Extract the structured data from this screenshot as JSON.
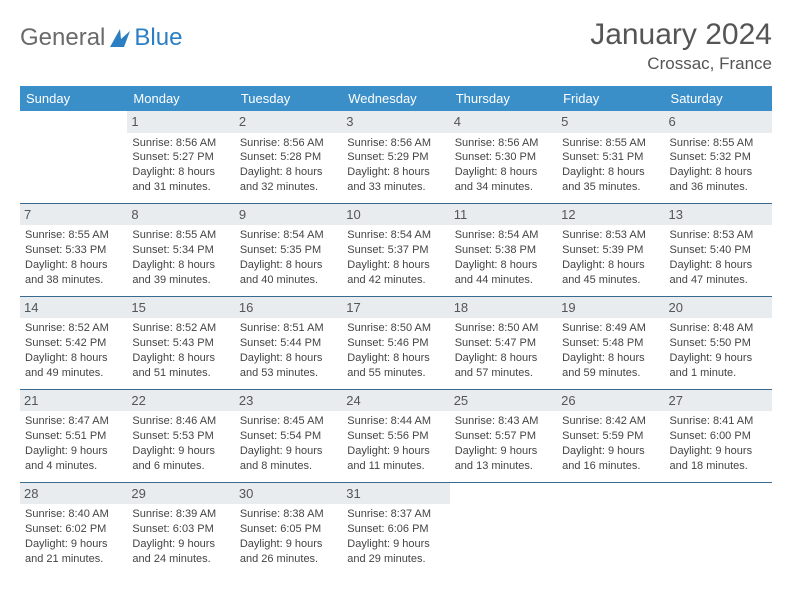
{
  "brand": {
    "part1": "General",
    "part2": "Blue"
  },
  "title": "January 2024",
  "location": "Crossac, France",
  "weekdays": [
    "Sunday",
    "Monday",
    "Tuesday",
    "Wednesday",
    "Thursday",
    "Friday",
    "Saturday"
  ],
  "colors": {
    "header_bg": "#3b8fc9",
    "header_text": "#ffffff",
    "daynum_bg": "#e8ecef",
    "border": "#3b6a8f",
    "brand_gray": "#6a6a6a",
    "brand_blue": "#2a7fc4"
  },
  "weeks": [
    [
      null,
      {
        "num": "1",
        "sunrise": "8:56 AM",
        "sunset": "5:27 PM",
        "daylight": "8 hours and 31 minutes."
      },
      {
        "num": "2",
        "sunrise": "8:56 AM",
        "sunset": "5:28 PM",
        "daylight": "8 hours and 32 minutes."
      },
      {
        "num": "3",
        "sunrise": "8:56 AM",
        "sunset": "5:29 PM",
        "daylight": "8 hours and 33 minutes."
      },
      {
        "num": "4",
        "sunrise": "8:56 AM",
        "sunset": "5:30 PM",
        "daylight": "8 hours and 34 minutes."
      },
      {
        "num": "5",
        "sunrise": "8:55 AM",
        "sunset": "5:31 PM",
        "daylight": "8 hours and 35 minutes."
      },
      {
        "num": "6",
        "sunrise": "8:55 AM",
        "sunset": "5:32 PM",
        "daylight": "8 hours and 36 minutes."
      }
    ],
    [
      {
        "num": "7",
        "sunrise": "8:55 AM",
        "sunset": "5:33 PM",
        "daylight": "8 hours and 38 minutes."
      },
      {
        "num": "8",
        "sunrise": "8:55 AM",
        "sunset": "5:34 PM",
        "daylight": "8 hours and 39 minutes."
      },
      {
        "num": "9",
        "sunrise": "8:54 AM",
        "sunset": "5:35 PM",
        "daylight": "8 hours and 40 minutes."
      },
      {
        "num": "10",
        "sunrise": "8:54 AM",
        "sunset": "5:37 PM",
        "daylight": "8 hours and 42 minutes."
      },
      {
        "num": "11",
        "sunrise": "8:54 AM",
        "sunset": "5:38 PM",
        "daylight": "8 hours and 44 minutes."
      },
      {
        "num": "12",
        "sunrise": "8:53 AM",
        "sunset": "5:39 PM",
        "daylight": "8 hours and 45 minutes."
      },
      {
        "num": "13",
        "sunrise": "8:53 AM",
        "sunset": "5:40 PM",
        "daylight": "8 hours and 47 minutes."
      }
    ],
    [
      {
        "num": "14",
        "sunrise": "8:52 AM",
        "sunset": "5:42 PM",
        "daylight": "8 hours and 49 minutes."
      },
      {
        "num": "15",
        "sunrise": "8:52 AM",
        "sunset": "5:43 PM",
        "daylight": "8 hours and 51 minutes."
      },
      {
        "num": "16",
        "sunrise": "8:51 AM",
        "sunset": "5:44 PM",
        "daylight": "8 hours and 53 minutes."
      },
      {
        "num": "17",
        "sunrise": "8:50 AM",
        "sunset": "5:46 PM",
        "daylight": "8 hours and 55 minutes."
      },
      {
        "num": "18",
        "sunrise": "8:50 AM",
        "sunset": "5:47 PM",
        "daylight": "8 hours and 57 minutes."
      },
      {
        "num": "19",
        "sunrise": "8:49 AM",
        "sunset": "5:48 PM",
        "daylight": "8 hours and 59 minutes."
      },
      {
        "num": "20",
        "sunrise": "8:48 AM",
        "sunset": "5:50 PM",
        "daylight": "9 hours and 1 minute."
      }
    ],
    [
      {
        "num": "21",
        "sunrise": "8:47 AM",
        "sunset": "5:51 PM",
        "daylight": "9 hours and 4 minutes."
      },
      {
        "num": "22",
        "sunrise": "8:46 AM",
        "sunset": "5:53 PM",
        "daylight": "9 hours and 6 minutes."
      },
      {
        "num": "23",
        "sunrise": "8:45 AM",
        "sunset": "5:54 PM",
        "daylight": "9 hours and 8 minutes."
      },
      {
        "num": "24",
        "sunrise": "8:44 AM",
        "sunset": "5:56 PM",
        "daylight": "9 hours and 11 minutes."
      },
      {
        "num": "25",
        "sunrise": "8:43 AM",
        "sunset": "5:57 PM",
        "daylight": "9 hours and 13 minutes."
      },
      {
        "num": "26",
        "sunrise": "8:42 AM",
        "sunset": "5:59 PM",
        "daylight": "9 hours and 16 minutes."
      },
      {
        "num": "27",
        "sunrise": "8:41 AM",
        "sunset": "6:00 PM",
        "daylight": "9 hours and 18 minutes."
      }
    ],
    [
      {
        "num": "28",
        "sunrise": "8:40 AM",
        "sunset": "6:02 PM",
        "daylight": "9 hours and 21 minutes."
      },
      {
        "num": "29",
        "sunrise": "8:39 AM",
        "sunset": "6:03 PM",
        "daylight": "9 hours and 24 minutes."
      },
      {
        "num": "30",
        "sunrise": "8:38 AM",
        "sunset": "6:05 PM",
        "daylight": "9 hours and 26 minutes."
      },
      {
        "num": "31",
        "sunrise": "8:37 AM",
        "sunset": "6:06 PM",
        "daylight": "9 hours and 29 minutes."
      },
      null,
      null,
      null
    ]
  ]
}
